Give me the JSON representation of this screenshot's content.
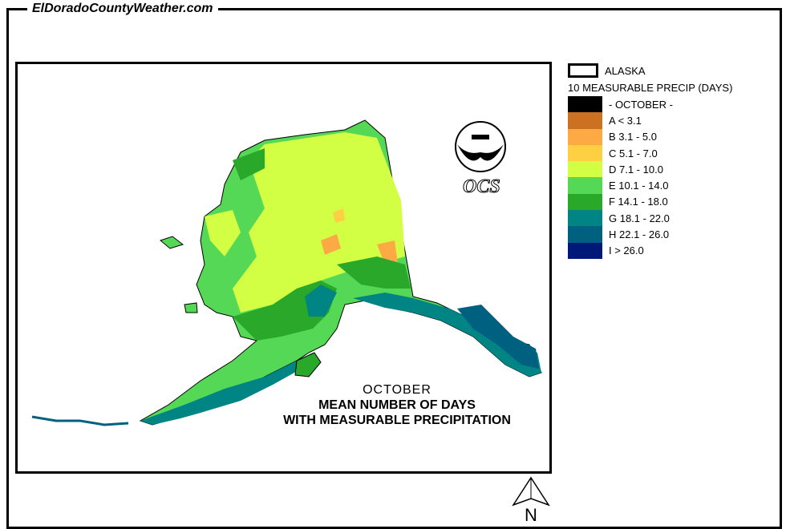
{
  "site_title": "ElDoradoCountyWeather.com",
  "logo": {
    "agency_text": "OCS",
    "emblem": "noaa-bird-logo"
  },
  "legend": {
    "region": "ALASKA",
    "subtitle": "10 MEASURABLE PRECIP (DAYS)",
    "items": [
      {
        "label": "- OCTOBER -",
        "color": "#000000"
      },
      {
        "label": "A < 3.1",
        "color": "#cc7022"
      },
      {
        "label": "B 3.1 - 5.0",
        "color": "#fdaa44"
      },
      {
        "label": "C 5.1 - 7.0",
        "color": "#fdd044"
      },
      {
        "label": "D 7.1 - 10.0",
        "color": "#d2ff44"
      },
      {
        "label": "E 10.1 - 14.0",
        "color": "#55d855"
      },
      {
        "label": "F 14.1 - 18.0",
        "color": "#2aa82a"
      },
      {
        "label": "G 18.1 - 22.0",
        "color": "#008484"
      },
      {
        "label": "H 22.1 - 26.0",
        "color": "#006080"
      },
      {
        "label": "I > 26.0",
        "color": "#001878"
      }
    ]
  },
  "caption": {
    "month": "OCTOBER",
    "line1": "MEAN NUMBER OF DAYS",
    "line2": "WITH MEASURABLE PRECIPITATION"
  },
  "north_arrow": "N"
}
